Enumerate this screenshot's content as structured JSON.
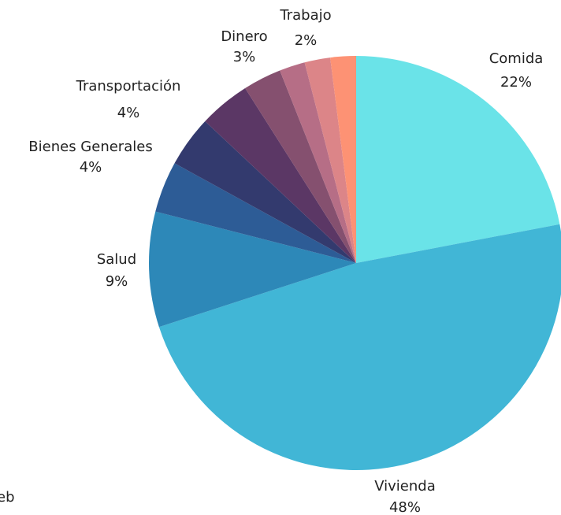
{
  "chart_data": {
    "type": "pie",
    "categories": [
      "Comida",
      "Vivienda",
      "Salud",
      null,
      "Bienes Generales",
      "Transportación",
      "Dinero",
      "Trabajo",
      null,
      null
    ],
    "values": [
      22,
      48,
      9,
      4,
      4,
      4,
      3,
      2,
      2,
      2
    ],
    "value_labels": [
      "22%",
      "48%",
      "9%",
      null,
      "4%",
      "4%",
      "3%",
      "2%",
      null,
      null
    ],
    "colors": [
      "#6ae3e8",
      "#41b6d6",
      "#2d88b8",
      "#2d5c96",
      "#333a6e",
      "#5b3765",
      "#85506f",
      "#b66e86",
      "#dc8588",
      "#fd9274"
    ]
  },
  "caption": "eb"
}
